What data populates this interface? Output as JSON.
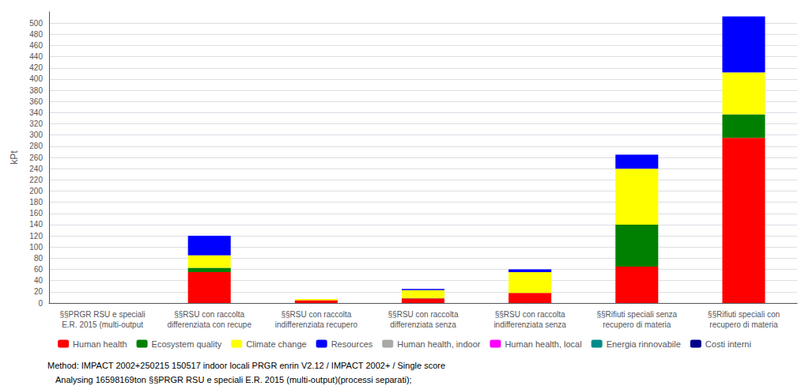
{
  "chart_data": {
    "type": "bar",
    "stacked": true,
    "categories": [
      "§§PRGR RSU e speciali\nE.R. 2015 (multi-output",
      "§§RSU con raccolta\ndifferenziata con recupe",
      "§§RSU con raccolta\nindifferenziata recupero",
      "§§RSU con raccolta\ndifferenziata senza",
      "§§RSU con raccolta\nindifferenziata senza",
      "§§Rifiuti speciali senza\nrecupero di materia",
      "§§Rifiuti speciali con\nrecupero di materia"
    ],
    "series": [
      {
        "name": "Human health",
        "color": "#FF0000",
        "values": [
          0,
          55,
          5,
          8,
          18,
          65,
          295
        ]
      },
      {
        "name": "Ecosystem quality",
        "color": "#008000",
        "values": [
          0,
          8,
          0,
          1,
          0,
          75,
          42
        ]
      },
      {
        "name": "Climate change",
        "color": "#FFFF00",
        "values": [
          0,
          22,
          2,
          14,
          37,
          100,
          75
        ]
      },
      {
        "name": "Resources",
        "color": "#0000FF",
        "values": [
          0,
          35,
          0,
          2,
          5,
          25,
          100
        ]
      },
      {
        "name": "Human health, indoor",
        "color": "#A9A9A9",
        "values": [
          0,
          0,
          0,
          0,
          0,
          0,
          0
        ]
      },
      {
        "name": "Human health, local",
        "color": "#FF00FF",
        "values": [
          0,
          0,
          0,
          0,
          0,
          0,
          0
        ]
      },
      {
        "name": "Energia rinnovabile",
        "color": "#008B8B",
        "values": [
          0,
          0,
          0,
          0,
          0,
          0,
          0
        ]
      },
      {
        "name": "Costi interni",
        "color": "#00008B",
        "values": [
          0,
          0,
          0,
          0,
          0,
          0,
          0
        ]
      }
    ],
    "ylabel": "kPt",
    "ylim": [
      0,
      520
    ],
    "yticks": [
      0,
      20,
      40,
      60,
      80,
      100,
      120,
      140,
      160,
      180,
      200,
      220,
      240,
      260,
      280,
      300,
      320,
      340,
      360,
      380,
      400,
      420,
      440,
      460,
      480,
      500
    ],
    "grid": true,
    "legend": "bottom",
    "annotations": [
      "Method: IMPACT 2002+250215 150517 indoor locali PRGR enrin V2.12 / IMPACT 2002+ / Single score",
      "Analysing 16598169ton §§PRGR RSU e speciali E.R. 2015 (multi-output)(processi separati);"
    ]
  }
}
